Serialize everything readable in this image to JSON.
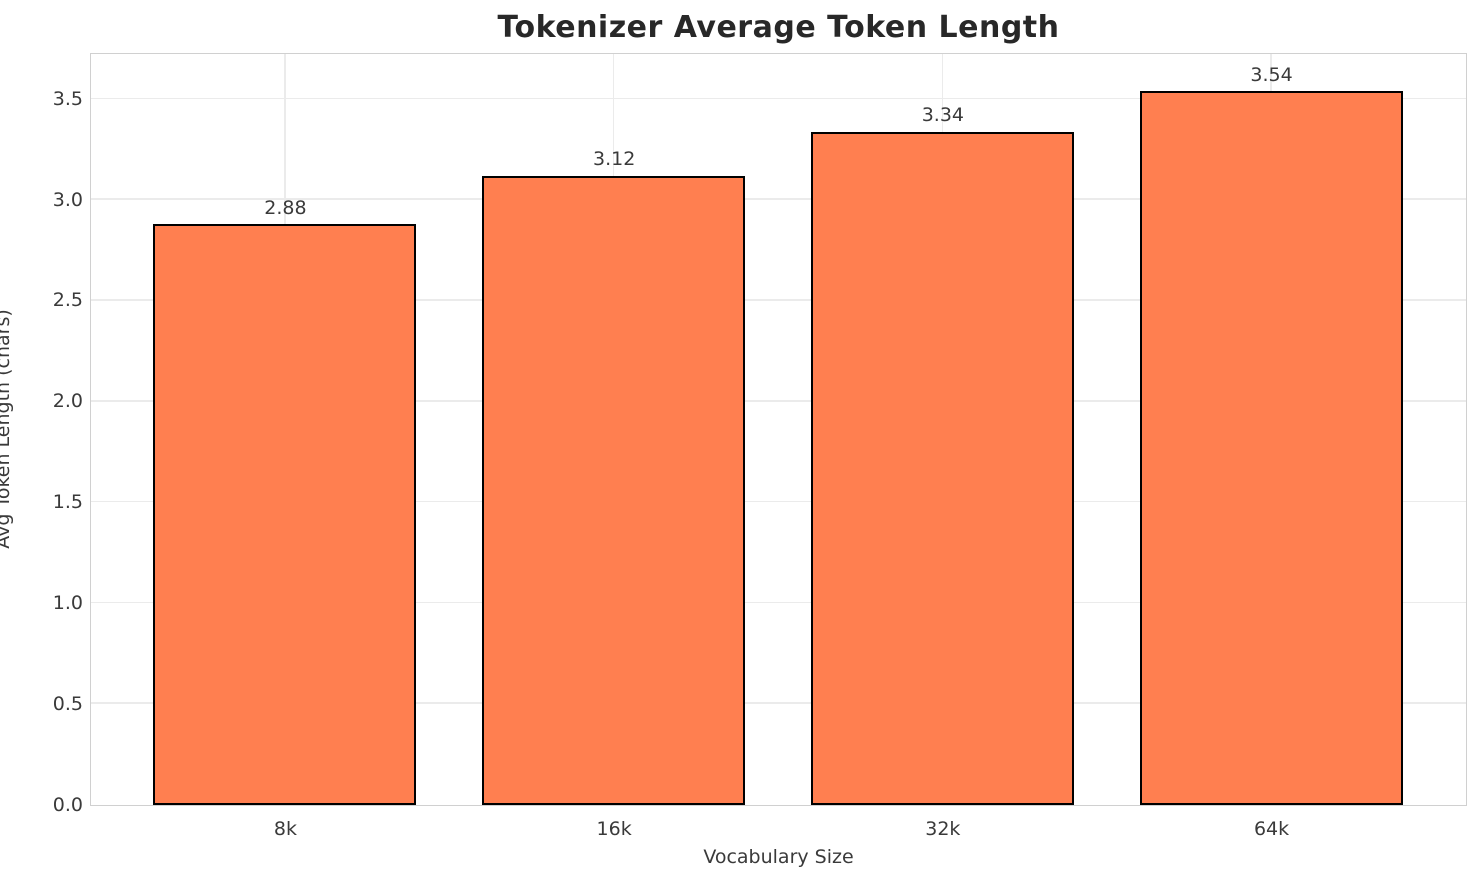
{
  "title": "Tokenizer Average Token Length",
  "chart_data": {
    "type": "bar",
    "title": "Tokenizer Average Token Length",
    "xlabel": "Vocabulary Size",
    "ylabel": "Avg Token Length (chars)",
    "categories": [
      "8k",
      "16k",
      "32k",
      "64k"
    ],
    "values": [
      2.88,
      3.12,
      3.34,
      3.54
    ],
    "value_labels": [
      "2.88",
      "3.12",
      "3.34",
      "3.54"
    ],
    "ylim": [
      0,
      3.72
    ],
    "yticks": [
      0.0,
      0.5,
      1.0,
      1.5,
      2.0,
      2.5,
      3.0,
      3.5
    ],
    "ytick_labels": [
      "0.0",
      "0.5",
      "1.0",
      "1.5",
      "2.0",
      "2.5",
      "3.0",
      "3.5"
    ],
    "grid": true,
    "legend_position": "none",
    "bar_color": "#ff7f50",
    "bar_edge_color": "#000000",
    "grid_color": "#ebebeb",
    "spine_color": "#d0d0d0",
    "text_color": "#3a3a3a",
    "title_color": "#282828",
    "bar_width_fraction": 0.8,
    "x_margin_fraction": 0.59
  }
}
